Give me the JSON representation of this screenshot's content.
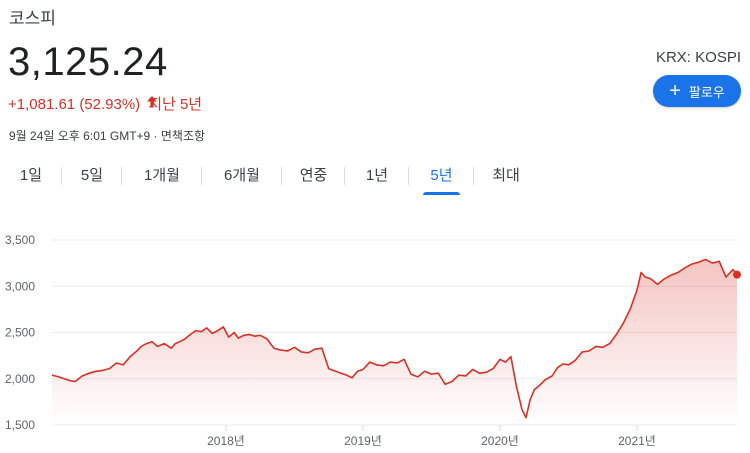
{
  "header": {
    "title": "코스피",
    "price": "3,125.24",
    "change": "+1,081.61 (52.93%)",
    "period": "지난 5년",
    "timestamp": "9월 24일 오후 6:01 GMT+9 · 면책조항",
    "symbol": "KRX: KOSPI",
    "follow_label": "팔로우"
  },
  "tabs": [
    {
      "label": "1일",
      "active": false
    },
    {
      "label": "5일",
      "active": false
    },
    {
      "label": "1개월",
      "active": false
    },
    {
      "label": "6개월",
      "active": false
    },
    {
      "label": "연중",
      "active": false
    },
    {
      "label": "1년",
      "active": false
    },
    {
      "label": "5년",
      "active": true
    },
    {
      "label": "최대",
      "active": false
    }
  ],
  "colors": {
    "accent": "#1a73e8",
    "negative_change": "#d93025",
    "line": "#d93025"
  },
  "chart_data": {
    "type": "area",
    "ylim": [
      1500,
      3500
    ],
    "xlim": [
      2016.73,
      2021.73
    ],
    "yticks": [
      1500,
      2000,
      2500,
      3000,
      3500
    ],
    "ytick_labels": [
      "1,500",
      "2,000",
      "2,500",
      "3,000",
      "3,500"
    ],
    "xticks": [
      2018,
      2019,
      2020,
      2021
    ],
    "xtick_labels": [
      "2018년",
      "2019년",
      "2020년",
      "2021년"
    ],
    "grid": true,
    "series": [
      {
        "x": [
          2016.73,
          2016.78,
          2016.82,
          2016.86,
          2016.9,
          2016.95,
          2017.0,
          2017.05,
          2017.1,
          2017.15,
          2017.2,
          2017.25,
          2017.3,
          2017.35,
          2017.38,
          2017.42,
          2017.46,
          2017.5,
          2017.55,
          2017.6,
          2017.63,
          2017.66,
          2017.7,
          2017.74,
          2017.78,
          2017.82,
          2017.86,
          2017.9,
          2017.94,
          2017.98,
          2018.02,
          2018.06,
          2018.09,
          2018.13,
          2018.17,
          2018.21,
          2018.25,
          2018.3,
          2018.35,
          2018.4,
          2018.45,
          2018.5,
          2018.55,
          2018.6,
          2018.65,
          2018.7,
          2018.75,
          2018.8,
          2018.84,
          2018.88,
          2018.92,
          2018.96,
          2019.0,
          2019.05,
          2019.1,
          2019.15,
          2019.2,
          2019.25,
          2019.3,
          2019.35,
          2019.4,
          2019.45,
          2019.5,
          2019.55,
          2019.6,
          2019.65,
          2019.7,
          2019.75,
          2019.8,
          2019.85,
          2019.9,
          2019.95,
          2020.0,
          2020.04,
          2020.08,
          2020.12,
          2020.16,
          2020.19,
          2020.22,
          2020.25,
          2020.29,
          2020.33,
          2020.38,
          2020.42,
          2020.46,
          2020.5,
          2020.55,
          2020.6,
          2020.65,
          2020.7,
          2020.75,
          2020.8,
          2020.85,
          2020.9,
          2020.95,
          2021.0,
          2021.03,
          2021.06,
          2021.1,
          2021.15,
          2021.2,
          2021.25,
          2021.3,
          2021.35,
          2021.4,
          2021.45,
          2021.5,
          2021.55,
          2021.6,
          2021.65,
          2021.7,
          2021.73
        ],
        "y": [
          2040,
          2020,
          2000,
          1980,
          1970,
          2030,
          2060,
          2080,
          2090,
          2110,
          2170,
          2150,
          2240,
          2300,
          2350,
          2380,
          2400,
          2350,
          2380,
          2330,
          2380,
          2400,
          2430,
          2480,
          2520,
          2510,
          2550,
          2490,
          2520,
          2560,
          2450,
          2500,
          2440,
          2470,
          2480,
          2460,
          2470,
          2430,
          2330,
          2310,
          2300,
          2340,
          2290,
          2280,
          2320,
          2330,
          2110,
          2080,
          2060,
          2040,
          2010,
          2080,
          2100,
          2180,
          2150,
          2140,
          2180,
          2170,
          2210,
          2050,
          2020,
          2080,
          2050,
          2060,
          1940,
          1970,
          2040,
          2030,
          2100,
          2060,
          2070,
          2110,
          2210,
          2180,
          2240,
          1920,
          1670,
          1580,
          1770,
          1880,
          1930,
          1990,
          2030,
          2120,
          2160,
          2150,
          2200,
          2290,
          2300,
          2350,
          2340,
          2380,
          2480,
          2600,
          2750,
          2960,
          3150,
          3100,
          3080,
          3020,
          3080,
          3120,
          3150,
          3200,
          3240,
          3260,
          3290,
          3250,
          3270,
          3100,
          3180,
          3125.24
        ]
      }
    ]
  }
}
